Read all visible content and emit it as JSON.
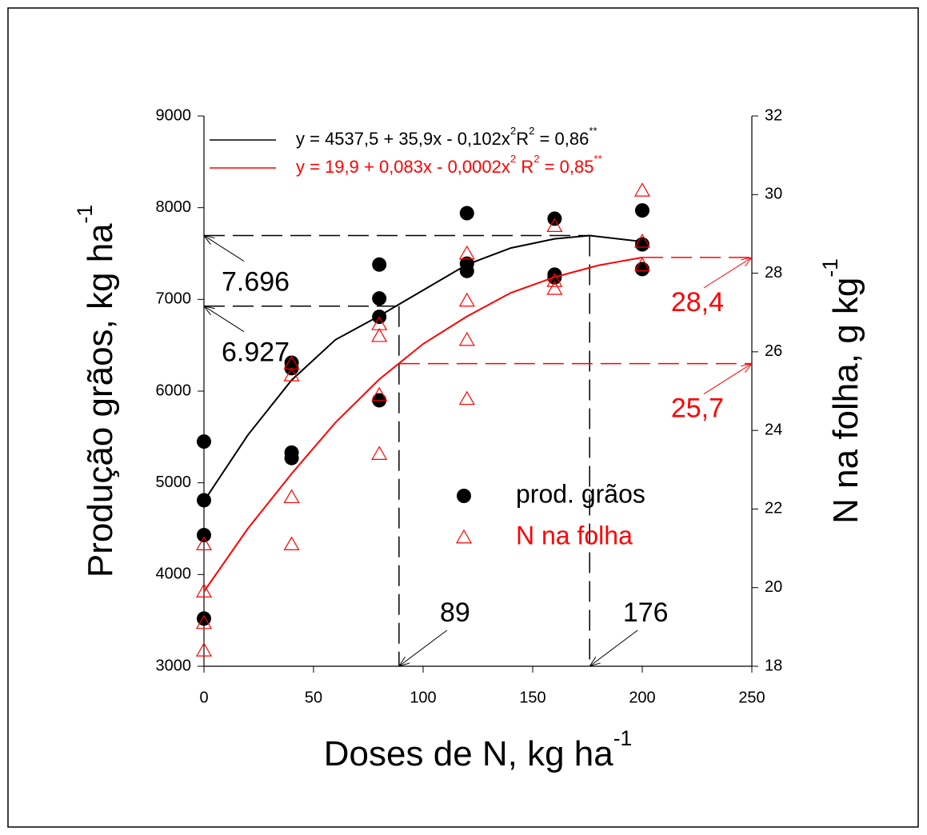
{
  "chart_data": {
    "type": "scatter",
    "x_title": [
      "Doses de N, kg ha",
      "-1"
    ],
    "y_title": [
      "Produção grãos, kg ha",
      "-1"
    ],
    "y2_title": [
      "N na folha, g kg",
      "-1"
    ],
    "xlim": [
      0,
      250
    ],
    "xticks": [
      0,
      50,
      100,
      150,
      200,
      250
    ],
    "ylim": [
      3000,
      9000
    ],
    "yticks": [
      3000,
      4000,
      5000,
      6000,
      7000,
      8000,
      9000
    ],
    "y2lim": [
      18,
      32
    ],
    "y2ticks": [
      18,
      20,
      22,
      24,
      26,
      28,
      30,
      32
    ],
    "series": [
      {
        "name": "prod. grãos",
        "color": "#000000",
        "marker": "circle",
        "axis": "y",
        "x": [
          0,
          0,
          0,
          0,
          40,
          40,
          40,
          40,
          80,
          80,
          80,
          80,
          120,
          120,
          120,
          160,
          160,
          160,
          200,
          200,
          200
        ],
        "values": [
          5450,
          4810,
          4430,
          3520,
          6310,
          6250,
          5330,
          5270,
          7380,
          7010,
          6810,
          5900,
          7940,
          7390,
          7310,
          7880,
          7270,
          7240,
          7970,
          7600,
          7330
        ],
        "equation": [
          "y = 4537,5 + 35,9x - 0,102x",
          "2",
          "R",
          "2",
          " = 0,86",
          "**"
        ],
        "fit": {
          "x": [
            0,
            20,
            40,
            60,
            80,
            100,
            120,
            140,
            160,
            176,
            200
          ],
          "values": [
            4800,
            5520,
            6120,
            6560,
            6820,
            7100,
            7380,
            7560,
            7660,
            7696,
            7630
          ]
        }
      },
      {
        "name": "N na folha",
        "color": "#ff0000",
        "marker": "triangle",
        "axis": "y2",
        "x": [
          0,
          0,
          0,
          0,
          40,
          40,
          40,
          40,
          80,
          80,
          80,
          80,
          120,
          120,
          120,
          120,
          160,
          160,
          160,
          200,
          200,
          200
        ],
        "values": [
          21.1,
          19.9,
          19.1,
          18.4,
          25.7,
          25.4,
          22.3,
          21.1,
          26.7,
          26.4,
          24.9,
          23.4,
          28.5,
          27.3,
          26.3,
          24.8,
          29.2,
          27.8,
          27.6,
          30.1,
          28.8,
          28.2
        ],
        "equation": [
          "y = 19,9 + 0,083x - 0,0002x",
          "2",
          "  R",
          "2",
          " = 0,85",
          "**"
        ],
        "fit": {
          "x": [
            0,
            20,
            40,
            60,
            80,
            100,
            120,
            140,
            160,
            180,
            200
          ],
          "values": [
            19.9,
            21.5,
            22.9,
            24.2,
            25.3,
            26.2,
            26.9,
            27.5,
            27.9,
            28.2,
            28.4
          ]
        }
      }
    ],
    "guides": [
      {
        "x": 176,
        "y": 7696,
        "y_label": "7.696",
        "axis": "y",
        "color": "#000000"
      },
      {
        "x": 89,
        "y": 6927,
        "y_label": "6.927",
        "axis": "y",
        "color": "#000000"
      },
      {
        "x": 200,
        "y": 28.4,
        "y_label": "28,4",
        "axis": "y2",
        "color": "#ff0000"
      },
      {
        "x": 89,
        "y": 25.7,
        "y_label": "25,7",
        "axis": "y2",
        "color": "#ff0000"
      }
    ]
  }
}
